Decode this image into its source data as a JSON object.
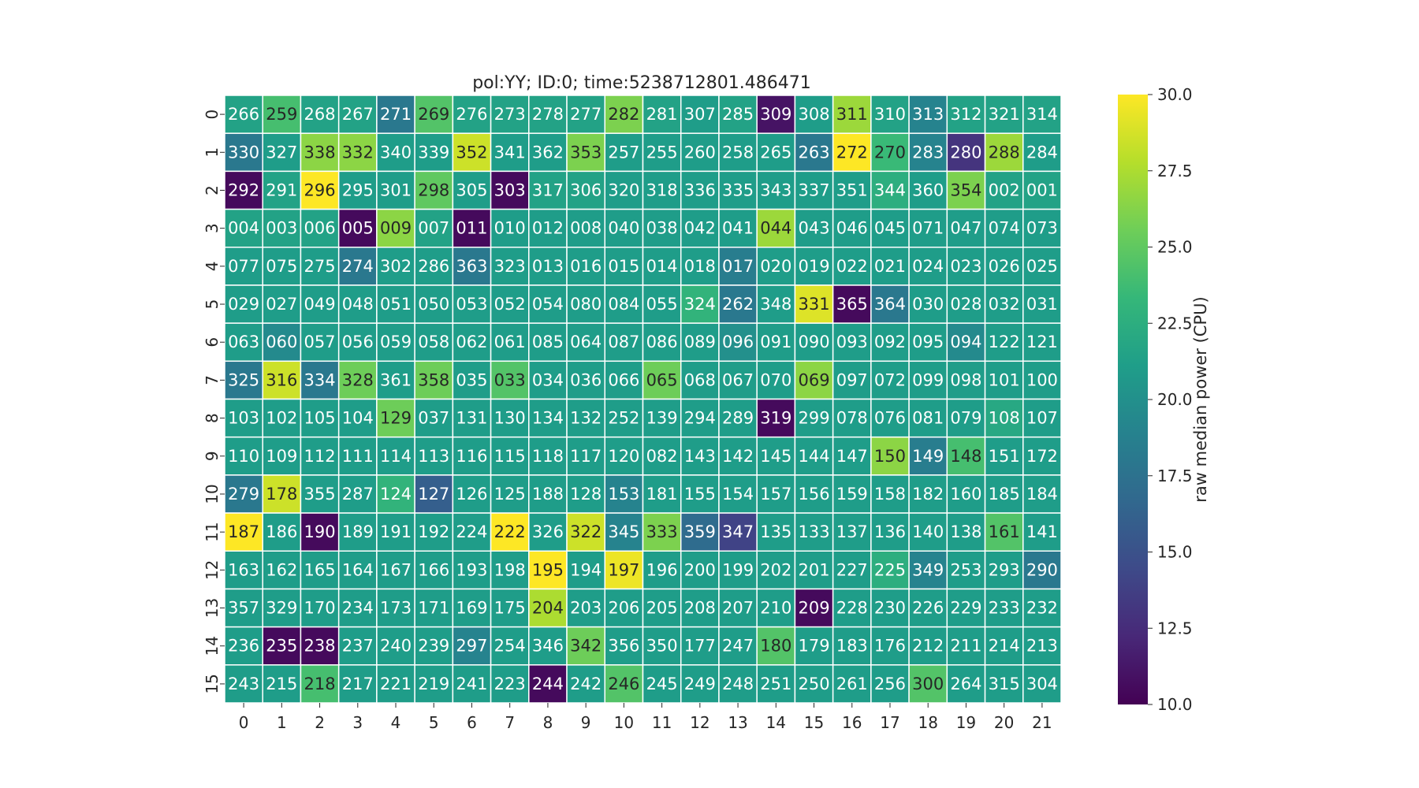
{
  "chart_data": {
    "type": "heatmap",
    "title": "pol:YY; ID:0; time:5238712801.486471",
    "xlabel": "",
    "ylabel": "",
    "x_ticks": [
      "0",
      "1",
      "2",
      "3",
      "4",
      "5",
      "6",
      "7",
      "8",
      "9",
      "10",
      "11",
      "12",
      "13",
      "14",
      "15",
      "16",
      "17",
      "18",
      "19",
      "20",
      "21"
    ],
    "y_ticks": [
      "0",
      "1",
      "2",
      "3",
      "4",
      "5",
      "6",
      "7",
      "8",
      "9",
      "10",
      "11",
      "12",
      "13",
      "14",
      "15"
    ],
    "colorbar": {
      "label": "raw median power (CPU)",
      "range": [
        10.0,
        30.0
      ],
      "ticks": [
        "10.0",
        "12.5",
        "15.0",
        "17.5",
        "20.0",
        "22.5",
        "25.0",
        "27.5",
        "30.0"
      ],
      "colormap": "viridis"
    },
    "annotations": [
      [
        "266",
        "259",
        "268",
        "267",
        "271",
        "269",
        "276",
        "273",
        "278",
        "277",
        "282",
        "281",
        "307",
        "285",
        "309",
        "308",
        "311",
        "310",
        "313",
        "312",
        "321",
        "314"
      ],
      [
        "330",
        "327",
        "338",
        "332",
        "340",
        "339",
        "352",
        "341",
        "362",
        "353",
        "257",
        "255",
        "260",
        "258",
        "265",
        "263",
        "272",
        "270",
        "283",
        "280",
        "288",
        "284"
      ],
      [
        "292",
        "291",
        "296",
        "295",
        "301",
        "298",
        "305",
        "303",
        "317",
        "306",
        "320",
        "318",
        "336",
        "335",
        "343",
        "337",
        "351",
        "344",
        "360",
        "354",
        "002",
        "001"
      ],
      [
        "004",
        "003",
        "006",
        "005",
        "009",
        "007",
        "011",
        "010",
        "012",
        "008",
        "040",
        "038",
        "042",
        "041",
        "044",
        "043",
        "046",
        "045",
        "071",
        "047",
        "074",
        "073"
      ],
      [
        "077",
        "075",
        "275",
        "274",
        "302",
        "286",
        "363",
        "323",
        "013",
        "016",
        "015",
        "014",
        "018",
        "017",
        "020",
        "019",
        "022",
        "021",
        "024",
        "023",
        "026",
        "025"
      ],
      [
        "029",
        "027",
        "049",
        "048",
        "051",
        "050",
        "053",
        "052",
        "054",
        "080",
        "084",
        "055",
        "324",
        "262",
        "348",
        "331",
        "365",
        "364",
        "030",
        "028",
        "032",
        "031"
      ],
      [
        "063",
        "060",
        "057",
        "056",
        "059",
        "058",
        "062",
        "061",
        "085",
        "064",
        "087",
        "086",
        "089",
        "096",
        "091",
        "090",
        "093",
        "092",
        "095",
        "094",
        "122",
        "121"
      ],
      [
        "325",
        "316",
        "334",
        "328",
        "361",
        "358",
        "035",
        "033",
        "034",
        "036",
        "066",
        "065",
        "068",
        "067",
        "070",
        "069",
        "097",
        "072",
        "099",
        "098",
        "101",
        "100"
      ],
      [
        "103",
        "102",
        "105",
        "104",
        "129",
        "037",
        "131",
        "130",
        "134",
        "132",
        "252",
        "139",
        "294",
        "289",
        "319",
        "299",
        "078",
        "076",
        "081",
        "079",
        "108",
        "107"
      ],
      [
        "110",
        "109",
        "112",
        "111",
        "114",
        "113",
        "116",
        "115",
        "118",
        "117",
        "120",
        "082",
        "143",
        "142",
        "145",
        "144",
        "147",
        "150",
        "149",
        "148",
        "151",
        "172"
      ],
      [
        "279",
        "178",
        "355",
        "287",
        "124",
        "127",
        "126",
        "125",
        "188",
        "128",
        "153",
        "181",
        "155",
        "154",
        "157",
        "156",
        "159",
        "158",
        "182",
        "160",
        "185",
        "184"
      ],
      [
        "187",
        "186",
        "190",
        "189",
        "191",
        "192",
        "224",
        "222",
        "326",
        "322",
        "345",
        "333",
        "359",
        "347",
        "135",
        "133",
        "137",
        "136",
        "140",
        "138",
        "161",
        "141"
      ],
      [
        "163",
        "162",
        "165",
        "164",
        "167",
        "166",
        "193",
        "198",
        "195",
        "194",
        "197",
        "196",
        "200",
        "199",
        "202",
        "201",
        "227",
        "225",
        "349",
        "253",
        "293",
        "290"
      ],
      [
        "357",
        "329",
        "170",
        "234",
        "173",
        "171",
        "169",
        "175",
        "204",
        "203",
        "206",
        "205",
        "208",
        "207",
        "210",
        "209",
        "228",
        "230",
        "226",
        "229",
        "233",
        "232"
      ],
      [
        "236",
        "235",
        "238",
        "237",
        "240",
        "239",
        "297",
        "254",
        "346",
        "342",
        "356",
        "350",
        "177",
        "247",
        "180",
        "179",
        "183",
        "176",
        "212",
        "211",
        "214",
        "213"
      ],
      [
        "243",
        "215",
        "218",
        "217",
        "221",
        "219",
        "241",
        "223",
        "244",
        "242",
        "246",
        "245",
        "249",
        "248",
        "251",
        "250",
        "261",
        "256",
        "300",
        "264",
        "315",
        "304"
      ]
    ],
    "values": [
      [
        21.5,
        24.0,
        21.5,
        21.5,
        18.0,
        24.5,
        21.5,
        21.5,
        21.5,
        21.5,
        26.0,
        21.5,
        21.0,
        21.5,
        11.0,
        21.0,
        27.0,
        21.5,
        19.0,
        21.5,
        21.5,
        21.5
      ],
      [
        18.0,
        21.0,
        26.5,
        26.5,
        21.0,
        21.0,
        28.5,
        21.0,
        21.0,
        26.0,
        21.0,
        21.0,
        21.0,
        21.0,
        21.0,
        18.0,
        30.0,
        23.5,
        19.0,
        13.0,
        27.0,
        21.0
      ],
      [
        10.5,
        21.5,
        30.0,
        21.0,
        21.0,
        25.0,
        21.0,
        10.5,
        21.5,
        21.5,
        21.0,
        21.0,
        21.0,
        21.0,
        21.0,
        21.0,
        21.0,
        22.5,
        21.0,
        26.0,
        21.5,
        21.5
      ],
      [
        21.5,
        21.5,
        21.5,
        10.5,
        26.5,
        21.5,
        10.5,
        21.0,
        21.0,
        21.0,
        21.0,
        21.0,
        21.0,
        21.0,
        27.0,
        21.0,
        21.0,
        21.0,
        21.0,
        21.0,
        21.0,
        21.0
      ],
      [
        21.0,
        21.0,
        21.0,
        18.0,
        21.0,
        21.0,
        18.0,
        21.0,
        21.0,
        21.0,
        21.0,
        21.0,
        21.0,
        18.5,
        21.0,
        21.0,
        21.0,
        21.0,
        21.0,
        21.0,
        21.0,
        21.0
      ],
      [
        21.0,
        21.0,
        21.0,
        21.0,
        21.0,
        21.0,
        21.0,
        21.0,
        21.0,
        21.0,
        21.0,
        21.0,
        23.0,
        18.0,
        21.0,
        29.0,
        10.5,
        18.0,
        21.0,
        21.0,
        21.0,
        21.0
      ],
      [
        21.0,
        19.5,
        21.0,
        21.0,
        21.0,
        21.0,
        21.0,
        21.0,
        21.0,
        21.0,
        21.0,
        21.0,
        21.0,
        20.0,
        21.0,
        21.0,
        21.0,
        21.0,
        21.0,
        19.5,
        21.0,
        21.0
      ],
      [
        18.0,
        28.5,
        18.0,
        25.5,
        21.0,
        25.5,
        21.0,
        24.5,
        21.0,
        21.0,
        21.0,
        25.5,
        21.0,
        21.0,
        21.0,
        26.5,
        21.0,
        21.0,
        21.0,
        21.0,
        21.0,
        21.0
      ],
      [
        21.0,
        21.0,
        21.0,
        21.0,
        25.5,
        21.0,
        21.0,
        21.0,
        21.0,
        21.0,
        21.0,
        21.0,
        21.0,
        21.0,
        10.5,
        21.0,
        21.0,
        21.0,
        21.0,
        21.0,
        22.0,
        21.0
      ],
      [
        21.0,
        21.0,
        21.0,
        21.0,
        21.0,
        21.0,
        21.0,
        21.0,
        21.0,
        21.0,
        21.0,
        21.0,
        21.0,
        21.0,
        21.0,
        21.0,
        21.0,
        26.5,
        18.5,
        24.0,
        21.0,
        21.0
      ],
      [
        18.0,
        28.5,
        21.0,
        21.0,
        23.0,
        16.0,
        21.0,
        21.0,
        21.0,
        21.0,
        19.0,
        21.0,
        21.0,
        21.0,
        21.0,
        21.0,
        21.0,
        21.0,
        21.0,
        21.0,
        21.0,
        21.0
      ],
      [
        30.0,
        21.0,
        10.5,
        21.0,
        21.0,
        21.0,
        21.0,
        30.0,
        21.0,
        28.5,
        19.0,
        26.0,
        17.0,
        14.0,
        21.0,
        21.0,
        21.0,
        21.0,
        21.0,
        21.0,
        24.5,
        21.0
      ],
      [
        21.0,
        21.0,
        21.0,
        21.0,
        21.0,
        21.0,
        21.0,
        21.0,
        30.0,
        21.0,
        29.5,
        21.0,
        21.0,
        21.0,
        21.0,
        21.0,
        21.0,
        22.5,
        19.0,
        21.0,
        21.0,
        18.0
      ],
      [
        21.0,
        21.0,
        21.0,
        21.0,
        21.0,
        21.0,
        21.0,
        21.0,
        27.5,
        21.0,
        21.0,
        21.0,
        21.0,
        21.0,
        21.0,
        10.5,
        21.0,
        21.0,
        21.0,
        21.0,
        21.0,
        21.0
      ],
      [
        21.0,
        10.5,
        10.5,
        21.0,
        21.0,
        21.0,
        19.0,
        21.0,
        21.0,
        25.5,
        21.0,
        21.0,
        21.0,
        21.0,
        24.5,
        21.0,
        21.0,
        21.0,
        21.0,
        21.0,
        21.0,
        21.0
      ],
      [
        21.0,
        21.0,
        24.0,
        21.0,
        21.0,
        21.0,
        21.0,
        21.0,
        10.5,
        21.0,
        24.5,
        21.0,
        21.0,
        21.0,
        21.0,
        21.0,
        21.0,
        21.0,
        24.5,
        21.0,
        21.0,
        21.0
      ]
    ]
  }
}
